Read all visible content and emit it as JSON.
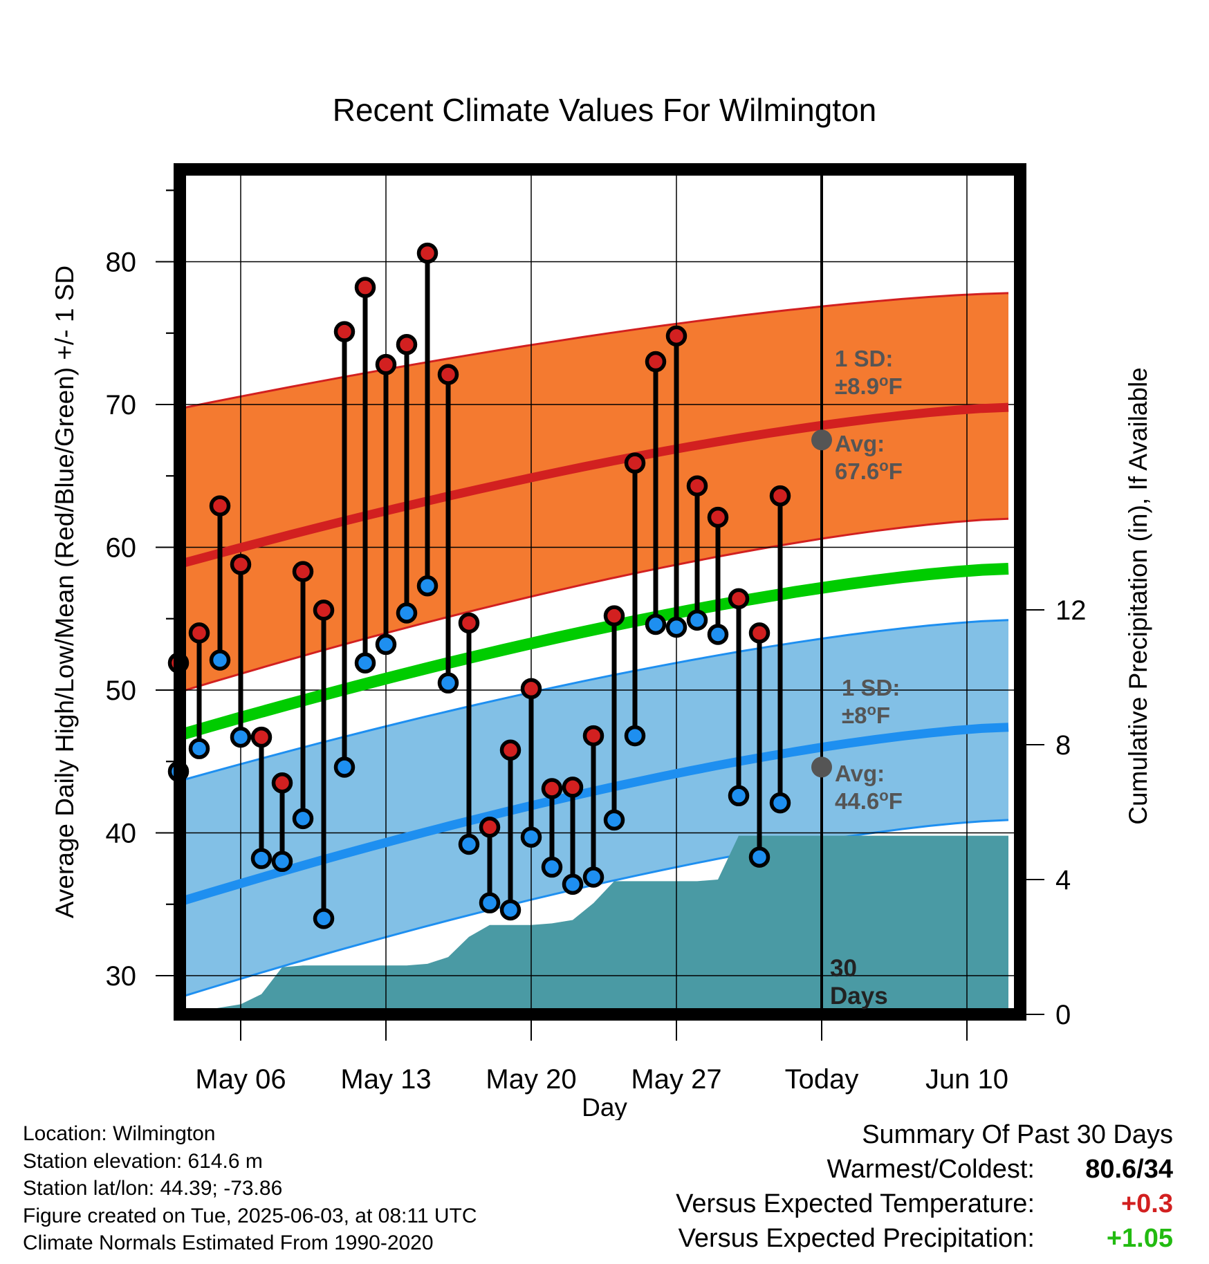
{
  "chart_data": {
    "type": "line",
    "title": "Recent Climate Values For Wilmington",
    "xlabel": "Day",
    "ylabel": "Average Daily High/Low/Mean (Red/Blue/Green) +/- 1 SD",
    "ylabel_right": "Cumulative Precipitation (in), If Available",
    "x_tick_labels": [
      "May 06",
      "May 13",
      "May 20",
      "May 27",
      "Today",
      "Jun 10"
    ],
    "y_ticks": [
      30,
      40,
      50,
      60,
      70,
      80
    ],
    "y_ticks_right": [
      0,
      4,
      8,
      12
    ],
    "ylim": [
      26.2,
      87.5
    ],
    "ylim_right": [
      0,
      25
    ],
    "grid": true,
    "colors": {
      "high": "#d22020",
      "low": "#1e8ff0",
      "mean": "#00cc00",
      "high_band": "#f47a30",
      "low_band": "#82c0e6",
      "precip": "#4a9aa4"
    },
    "days": [
      "May 03",
      "May 04",
      "May 05",
      "May 06",
      "May 07",
      "May 08",
      "May 09",
      "May 10",
      "May 11",
      "May 12",
      "May 13",
      "May 14",
      "May 15",
      "May 16",
      "May 17",
      "May 18",
      "May 19",
      "May 20",
      "May 21",
      "May 22",
      "May 23",
      "May 24",
      "May 25",
      "May 26",
      "May 27",
      "May 28",
      "May 29",
      "May 30",
      "May 31",
      "Jun 01",
      "Jun 02"
    ],
    "series": [
      {
        "name": "High",
        "values": [
          51.9,
          54.0,
          62.9,
          58.8,
          46.7,
          43.5,
          58.3,
          55.6,
          75.1,
          78.2,
          72.8,
          74.2,
          80.6,
          72.1,
          54.7,
          40.4,
          45.8,
          50.1,
          43.1,
          43.2,
          46.8,
          55.2,
          65.9,
          73.0,
          74.8,
          64.3,
          62.1,
          56.4,
          54.0,
          63.6,
          null
        ]
      },
      {
        "name": "Low",
        "values": [
          44.3,
          45.9,
          52.1,
          46.7,
          38.2,
          38.0,
          41.0,
          34.0,
          44.6,
          51.9,
          53.2,
          55.4,
          57.3,
          50.5,
          39.2,
          35.1,
          34.6,
          39.7,
          37.6,
          36.4,
          36.9,
          40.9,
          46.8,
          54.6,
          54.4,
          54.9,
          53.9,
          42.6,
          38.3,
          42.1,
          null
        ]
      }
    ],
    "normals": {
      "x": [
        "May 02",
        "Jun 12"
      ],
      "high_avg": [
        58.4,
        69.8
      ],
      "high_sd_upper": [
        69.4,
        77.8
      ],
      "high_sd_lower": [
        49.4,
        62.0
      ],
      "mean_avg": [
        46.4,
        58.5
      ],
      "low_avg": [
        34.7,
        47.4
      ],
      "low_sd_upper": [
        43.2,
        54.9
      ],
      "low_sd_lower": [
        28.0,
        40.9
      ]
    },
    "precip_cumulative": {
      "x": [
        "May 02",
        "May 03",
        "May 04",
        "May 05",
        "May 06",
        "May 07",
        "May 08",
        "May 09",
        "May 10",
        "May 11",
        "May 12",
        "May 13",
        "May 14",
        "May 15",
        "May 16",
        "May 17",
        "May 18",
        "May 19",
        "May 20",
        "May 21",
        "May 22",
        "May 23",
        "May 24",
        "May 25",
        "May 26",
        "May 27",
        "May 28",
        "May 29",
        "May 30",
        "May 31",
        "Jun 01",
        "Jun 02",
        "Jun 12"
      ],
      "values": [
        0,
        0,
        0.1,
        0.2,
        0.3,
        0.6,
        1.4,
        1.45,
        1.45,
        1.45,
        1.45,
        1.45,
        1.45,
        1.5,
        1.7,
        2.3,
        2.65,
        2.65,
        2.65,
        2.7,
        2.8,
        3.3,
        3.95,
        3.95,
        3.95,
        3.95,
        3.95,
        4.0,
        5.3,
        5.3,
        5.3,
        5.3,
        5.3
      ]
    },
    "annotations": {
      "high_sd": {
        "line1": "1 SD:",
        "line2": "±8.9",
        "unit": "F"
      },
      "high_avg": {
        "line1": "Avg:",
        "line2": "67.6",
        "unit": "F"
      },
      "low_sd": {
        "line1": "1 SD:",
        "line2": "±8",
        "unit": "F"
      },
      "low_avg": {
        "line1": "Avg:",
        "line2": "44.6",
        "unit": "F"
      },
      "days": {
        "line1": "30",
        "line2": "Days"
      },
      "degree_symbol": "o"
    }
  },
  "info": {
    "location": "Location: Wilmington",
    "elevation": "Station elevation: 614.6 m",
    "latlon": "Station lat/lon: 44.39; -73.86",
    "created": "Figure created on Tue, 2025-06-03, at 08:11 UTC",
    "normals": "Climate Normals Estimated From 1990-2020"
  },
  "summary": {
    "title": "Summary Of Past 30 Days",
    "warmest_label": "Warmest/Coldest:",
    "warmest_value": "80.6/34",
    "temp_label": "Versus Expected Temperature:",
    "temp_value": "+0.3",
    "temp_color": "#d22020",
    "precip_label": "Versus Expected Precipitation:",
    "precip_value": "+1.05",
    "precip_color": "#22bb11"
  }
}
